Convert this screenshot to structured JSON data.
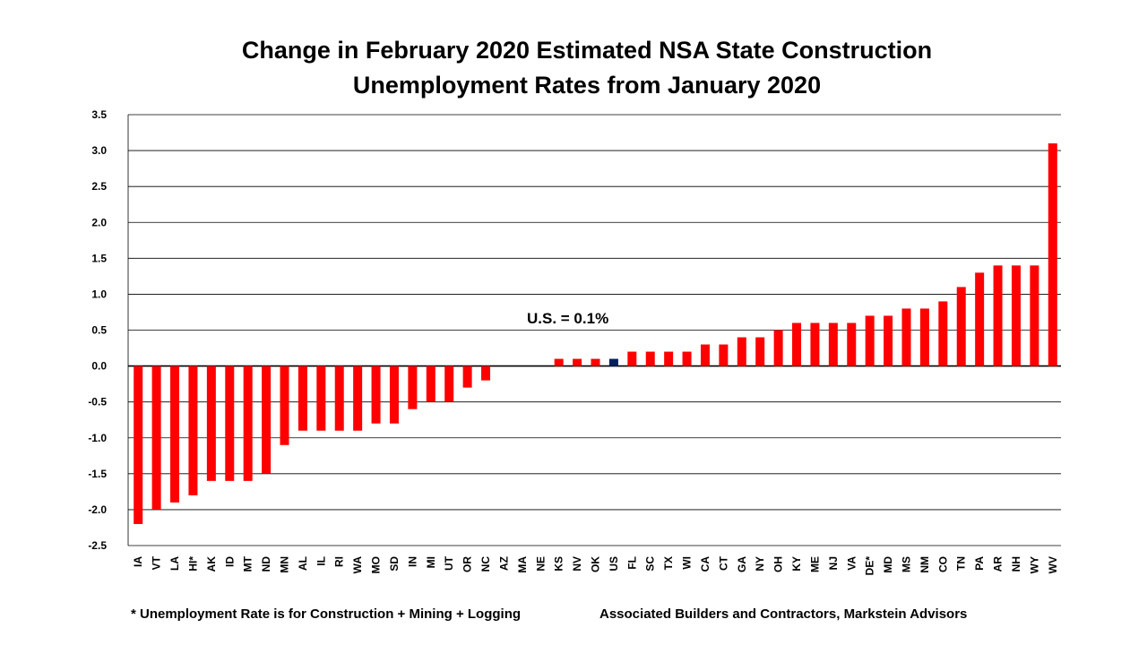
{
  "chart_data": {
    "type": "bar",
    "title": [
      "Change in February 2020 Estimated NSA State Construction",
      "Unemployment Rates from January 2020"
    ],
    "xlabel": "",
    "ylabel": "",
    "ylim": [
      -2.5,
      3.5
    ],
    "yticks": [
      3.5,
      3.0,
      2.5,
      2.0,
      1.5,
      1.0,
      0.5,
      0.0,
      -0.5,
      -1.0,
      -1.5,
      -2.0,
      -2.5
    ],
    "grid": true,
    "categories": [
      "IA",
      "VT",
      "LA",
      "HI*",
      "AK",
      "ID",
      "MT",
      "ND",
      "MN",
      "AL",
      "IL",
      "RI",
      "WA",
      "MO",
      "SD",
      "IN",
      "MI",
      "UT",
      "OR",
      "NC",
      "AZ",
      "MA",
      "NE",
      "KS",
      "NV",
      "OK",
      "US",
      "FL",
      "SC",
      "TX",
      "WI",
      "CA",
      "CT",
      "GA",
      "NY",
      "OH",
      "KY",
      "ME",
      "NJ",
      "VA",
      "DE*",
      "MD",
      "MS",
      "NM",
      "CO",
      "TN",
      "PA",
      "AR",
      "NH",
      "WY",
      "WV"
    ],
    "values": [
      -2.2,
      -2.0,
      -1.9,
      -1.8,
      -1.6,
      -1.6,
      -1.6,
      -1.5,
      -1.1,
      -0.9,
      -0.9,
      -0.9,
      -0.9,
      -0.8,
      -0.8,
      -0.6,
      -0.5,
      -0.5,
      -0.3,
      -0.2,
      0,
      0,
      0,
      0.1,
      0.1,
      0.1,
      0.1,
      0.2,
      0.2,
      0.2,
      0.2,
      0.3,
      0.3,
      0.4,
      0.4,
      0.5,
      0.6,
      0.6,
      0.6,
      0.6,
      0.7,
      0.7,
      0.8,
      0.8,
      0.9,
      1.1,
      1.3,
      1.4,
      1.4,
      1.4,
      3.1
    ],
    "bar_color": "#FF0000",
    "highlight_category": "US",
    "highlight_color": "#002060",
    "annotation": "U.S. = 0.1%",
    "footnote": "* Unemployment Rate is for Construction + Mining + Logging",
    "source": "Associated Builders and Contractors, Markstein Advisors"
  }
}
